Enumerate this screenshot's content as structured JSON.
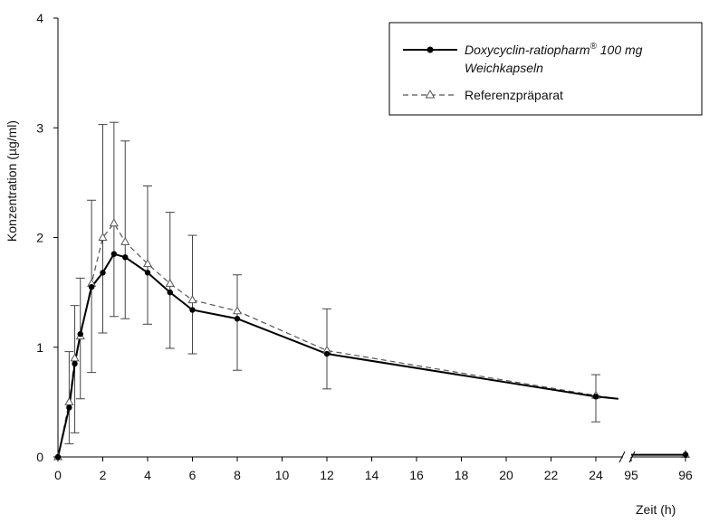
{
  "chart_data": {
    "type": "line",
    "xlabel": "Zeit (h)",
    "ylabel": "Konzentration (µg/ml)",
    "ylim": [
      0,
      4
    ],
    "x_segments": [
      {
        "range": [
          0,
          25.2
        ],
        "ticks": [
          0,
          2,
          4,
          6,
          8,
          10,
          12,
          14,
          16,
          18,
          20,
          22,
          24
        ]
      },
      {
        "range": [
          95,
          96
        ],
        "ticks": [
          95,
          96
        ]
      }
    ],
    "x_tick_labels": [
      "0",
      "2",
      "4",
      "6",
      "8",
      "10",
      "12",
      "14",
      "16",
      "18",
      "20",
      "22",
      "24",
      "95",
      "96"
    ],
    "y_ticks": [
      0,
      1,
      2,
      3,
      4
    ],
    "y_tick_labels": [
      "0",
      "1",
      "2",
      "3",
      "4"
    ],
    "grid": false,
    "legend_position": "top-right",
    "series": [
      {
        "name_line1": "Doxycyclin-ratiopharm",
        "name_sup": "®",
        "name_line1_suffix": " 100 mg",
        "name_line2": "Weichkapseln",
        "style": "solid",
        "marker": "filled-circle",
        "color": "#000000",
        "points": [
          {
            "x": 0,
            "y": 0.0
          },
          {
            "x": 0.5,
            "y": 0.45
          },
          {
            "x": 0.75,
            "y": 0.85
          },
          {
            "x": 1,
            "y": 1.12
          },
          {
            "x": 1.5,
            "y": 1.55
          },
          {
            "x": 2,
            "y": 1.68
          },
          {
            "x": 2.5,
            "y": 1.85
          },
          {
            "x": 3,
            "y": 1.82
          },
          {
            "x": 4,
            "y": 1.68
          },
          {
            "x": 5,
            "y": 1.5
          },
          {
            "x": 6,
            "y": 1.34
          },
          {
            "x": 8,
            "y": 1.26
          },
          {
            "x": 12,
            "y": 0.94
          },
          {
            "x": 24,
            "y": 0.55
          },
          {
            "x": 25,
            "y": 0.53
          },
          {
            "x": 95,
            "y": 0.02
          },
          {
            "x": 96,
            "y": 0.02
          }
        ]
      },
      {
        "name": "Referenzpräparat",
        "style": "dashed",
        "marker": "open-triangle",
        "color": "#555555",
        "points": [
          {
            "x": 0,
            "y": 0.0
          },
          {
            "x": 0.5,
            "y": 0.5
          },
          {
            "x": 0.75,
            "y": 0.9
          },
          {
            "x": 1,
            "y": 1.1
          },
          {
            "x": 1.5,
            "y": 1.58
          },
          {
            "x": 2,
            "y": 2.0
          },
          {
            "x": 2.5,
            "y": 2.13
          },
          {
            "x": 3,
            "y": 1.96
          },
          {
            "x": 4,
            "y": 1.76
          },
          {
            "x": 5,
            "y": 1.58
          },
          {
            "x": 6,
            "y": 1.43
          },
          {
            "x": 8,
            "y": 1.33
          },
          {
            "x": 12,
            "y": 0.97
          },
          {
            "x": 24,
            "y": 0.56
          },
          {
            "x": 25,
            "y": 0.53
          },
          {
            "x": 95,
            "y": 0.02
          },
          {
            "x": 96,
            "y": 0.02
          }
        ]
      }
    ],
    "error_bars": [
      {
        "x": 0.5,
        "low": 0.12,
        "high": 0.96
      },
      {
        "x": 0.75,
        "low": 0.22,
        "high": 1.38
      },
      {
        "x": 1,
        "low": 0.53,
        "high": 1.63
      },
      {
        "x": 1.5,
        "low": 0.77,
        "high": 2.34
      },
      {
        "x": 2,
        "low": 1.13,
        "high": 3.03
      },
      {
        "x": 2.5,
        "low": 1.28,
        "high": 3.05
      },
      {
        "x": 3,
        "low": 1.26,
        "high": 2.88
      },
      {
        "x": 4,
        "low": 1.21,
        "high": 2.47
      },
      {
        "x": 5,
        "low": 0.99,
        "high": 2.23
      },
      {
        "x": 6,
        "low": 0.94,
        "high": 2.02
      },
      {
        "x": 8,
        "low": 0.79,
        "high": 1.66
      },
      {
        "x": 12,
        "low": 0.62,
        "high": 1.35
      },
      {
        "x": 24,
        "low": 0.32,
        "high": 0.75
      }
    ]
  }
}
